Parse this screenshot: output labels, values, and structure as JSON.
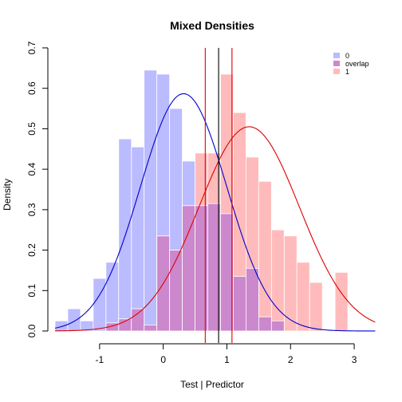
{
  "chart_data": {
    "type": "histogram-density",
    "title": "Mixed Densities",
    "xlabel": "Test | Predictor",
    "ylabel": "Density",
    "xlim": [
      -1.75,
      3.35
    ],
    "ylim": [
      0,
      0.7
    ],
    "x_ticks": [
      -1,
      0,
      1,
      2,
      3
    ],
    "y_ticks": [
      0.0,
      0.1,
      0.2,
      0.3,
      0.4,
      0.5,
      0.6,
      0.7
    ],
    "bin_edges": [
      -1.7,
      -1.5,
      -1.3,
      -1.1,
      -0.9,
      -0.7,
      -0.5,
      -0.3,
      -0.1,
      0.1,
      0.3,
      0.5,
      0.7,
      0.9,
      1.1,
      1.3,
      1.5,
      1.7,
      1.9,
      2.1,
      2.3,
      2.5,
      2.7,
      2.9,
      3.1
    ],
    "series": [
      {
        "name": "0",
        "color": "#bbbbff",
        "values": [
          0.025,
          0.055,
          0.025,
          0.13,
          0.17,
          0.475,
          0.455,
          0.645,
          0.635,
          0.55,
          0.42,
          0.31,
          0.315,
          0.29,
          0.135,
          0.155,
          0.035,
          0.025,
          0.0,
          0.0,
          0.0,
          0.0,
          0.0,
          0.0
        ]
      },
      {
        "name": "1",
        "color": "#ffbbbb",
        "values": [
          0.0,
          0.0,
          0.0,
          0.0,
          0.02,
          0.03,
          0.055,
          0.015,
          0.235,
          0.2,
          0.31,
          0.44,
          0.44,
          0.635,
          0.54,
          0.43,
          0.37,
          0.25,
          0.235,
          0.17,
          0.12,
          0.0,
          0.145,
          0.0
        ]
      }
    ],
    "overlap": {
      "name": "overlap",
      "color": "#cc88cc"
    },
    "density_curves": [
      {
        "name": "0",
        "color": "#0000cc",
        "mean": 0.32,
        "sd": 0.68
      },
      {
        "name": "1",
        "color": "#dd0000",
        "mean": 1.35,
        "sd": 0.79
      }
    ],
    "vlines": [
      {
        "x": 0.66,
        "color": "#dd0000"
      },
      {
        "x": 0.87,
        "color": "#000000"
      },
      {
        "x": 1.08,
        "color": "#dd0000"
      }
    ],
    "legend": {
      "position": "top-right",
      "items": [
        {
          "label": "0",
          "color": "#bbbbff"
        },
        {
          "label": "overlap",
          "color": "#cc88cc"
        },
        {
          "label": "1",
          "color": "#ffbbbb"
        }
      ]
    },
    "grid": false
  }
}
